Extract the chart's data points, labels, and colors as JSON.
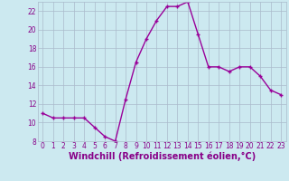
{
  "x": [
    0,
    1,
    2,
    3,
    4,
    5,
    6,
    7,
    8,
    9,
    10,
    11,
    12,
    13,
    14,
    15,
    16,
    17,
    18,
    19,
    20,
    21,
    22,
    23
  ],
  "y": [
    11.0,
    10.5,
    10.5,
    10.5,
    10.5,
    9.5,
    8.5,
    8.0,
    12.5,
    16.5,
    19.0,
    21.0,
    22.5,
    22.5,
    23.0,
    19.5,
    16.0,
    16.0,
    15.5,
    16.0,
    16.0,
    15.0,
    13.5,
    13.0
  ],
  "line_color": "#990099",
  "marker": "+",
  "marker_size": 3,
  "linewidth": 1.0,
  "bg_color": "#cce9f0",
  "grid_color": "#aabbcc",
  "xlabel": "Windchill (Refroidissement éolien,°C)",
  "xlim": [
    -0.5,
    23.5
  ],
  "ylim": [
    8,
    23
  ],
  "yticks": [
    8,
    10,
    12,
    14,
    16,
    18,
    20,
    22
  ],
  "xticks": [
    0,
    1,
    2,
    3,
    4,
    5,
    6,
    7,
    8,
    9,
    10,
    11,
    12,
    13,
    14,
    15,
    16,
    17,
    18,
    19,
    20,
    21,
    22,
    23
  ],
  "tick_label_fontsize": 5.5,
  "xlabel_fontsize": 7.0,
  "tick_color": "#880088",
  "label_color": "#880088"
}
